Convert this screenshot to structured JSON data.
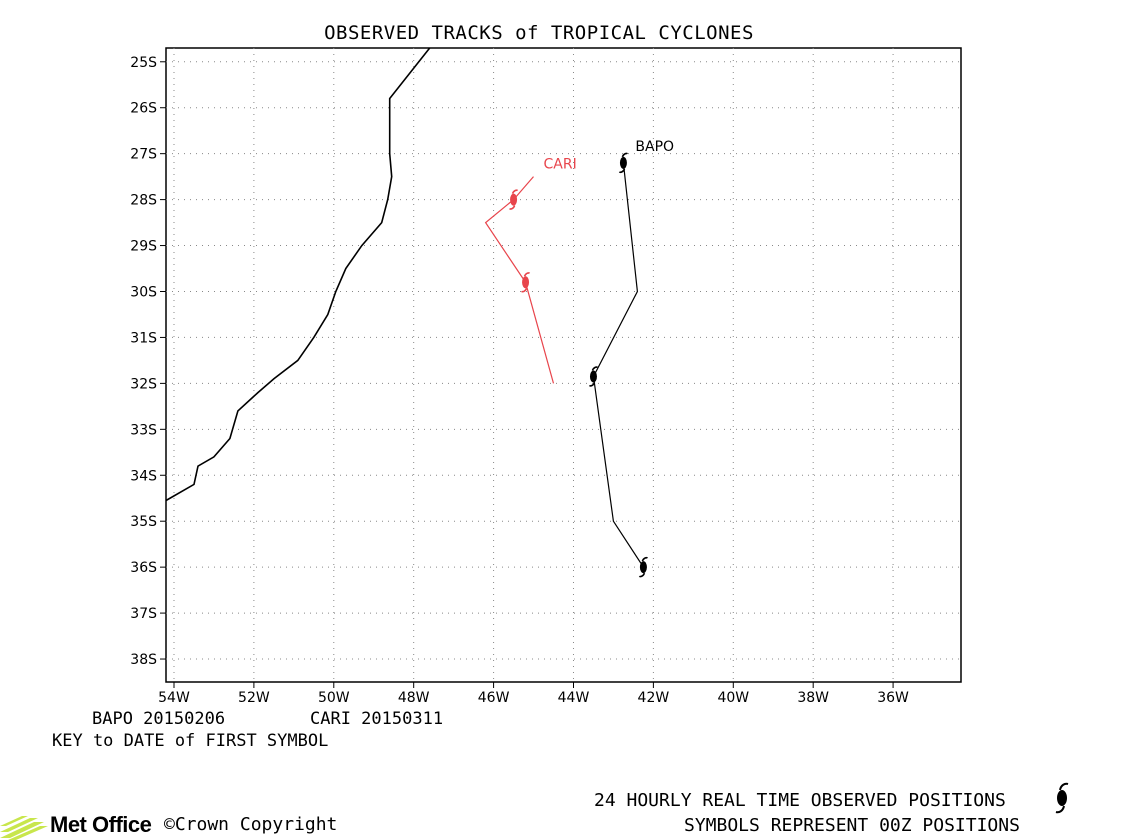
{
  "title": "OBSERVED TRACKS of TROPICAL CYCLONES",
  "map": {
    "lon_range": [
      -54.2,
      -34.3
    ],
    "lat_range": [
      -38.5,
      -24.7
    ],
    "lat_ticks": [
      "25S",
      "26S",
      "27S",
      "28S",
      "29S",
      "30S",
      "31S",
      "32S",
      "33S",
      "34S",
      "35S",
      "36S",
      "37S",
      "38S"
    ],
    "lon_ticks": [
      "54W",
      "52W",
      "50W",
      "48W",
      "46W",
      "44W",
      "42W",
      "40W",
      "38W",
      "36W"
    ],
    "grid": "dotted",
    "coastline": [
      [
        -47.6,
        -24.7
      ],
      [
        -48.6,
        -25.8
      ],
      [
        -48.6,
        -27.0
      ],
      [
        -48.55,
        -27.5
      ],
      [
        -48.65,
        -28.0
      ],
      [
        -48.8,
        -28.5
      ],
      [
        -49.3,
        -29.0
      ],
      [
        -49.7,
        -29.5
      ],
      [
        -49.95,
        -30.0
      ],
      [
        -50.15,
        -30.5
      ],
      [
        -50.5,
        -31.0
      ],
      [
        -50.9,
        -31.5
      ],
      [
        -51.5,
        -31.9
      ],
      [
        -51.9,
        -32.2
      ],
      [
        -52.4,
        -32.6
      ],
      [
        -52.6,
        -33.2
      ],
      [
        -53.0,
        -33.6
      ],
      [
        -53.4,
        -33.8
      ],
      [
        -53.5,
        -34.2
      ],
      [
        -54.2,
        -34.55
      ]
    ]
  },
  "tracks": [
    {
      "name": "BAPO",
      "label": "BAPO",
      "color": "#000000",
      "track": [
        [
          -42.75,
          -27.2
        ],
        [
          -42.4,
          -30.0
        ],
        [
          -43.5,
          -31.85
        ],
        [
          -43.0,
          -35.0
        ],
        [
          -42.25,
          -36.0
        ]
      ],
      "symbols": [
        [
          -42.75,
          -27.2
        ],
        [
          -43.5,
          -31.85
        ],
        [
          -42.25,
          -36.0
        ]
      ]
    },
    {
      "name": "CARI",
      "label": "CARI",
      "color": "#e8454c",
      "track": [
        [
          -44.5,
          -32.0
        ],
        [
          -45.2,
          -29.8
        ],
        [
          -46.2,
          -28.5
        ],
        [
          -45.5,
          -28.0
        ],
        [
          -45.0,
          -27.5
        ]
      ],
      "symbols": [
        [
          -45.2,
          -29.8
        ],
        [
          -45.5,
          -28.0
        ]
      ]
    }
  ],
  "key": {
    "entries": [
      "BAPO 20150206",
      "CARI 20150311"
    ],
    "caption": "KEY to DATE of FIRST SYMBOL"
  },
  "footer": {
    "line1": "24 HOURLY REAL TIME OBSERVED POSITIONS",
    "line2": "SYMBOLS REPRESENT 00Z POSITIONS",
    "logo": "Met Office",
    "copyright": "©Crown Copyright"
  },
  "colors": {
    "logo_green": "#c8e64c",
    "grid": "#888888"
  }
}
